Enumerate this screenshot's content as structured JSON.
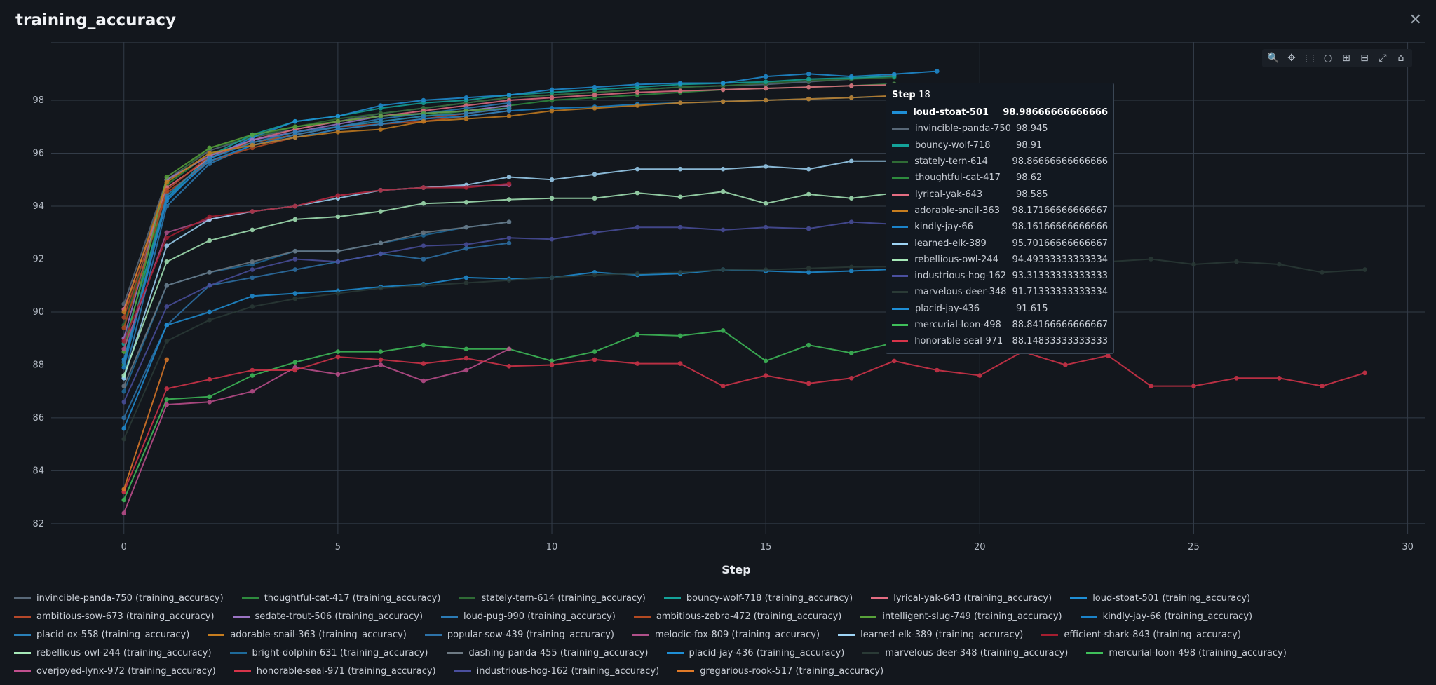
{
  "window": {
    "title": "training_accuracy",
    "close_glyph": "✕"
  },
  "toolbar": [
    {
      "name": "zoom-icon",
      "glyph": "🔍"
    },
    {
      "name": "pan-icon",
      "glyph": "✥"
    },
    {
      "name": "box-select-icon",
      "glyph": "⬚"
    },
    {
      "name": "lasso-select-icon",
      "glyph": "◌"
    },
    {
      "name": "zoom-in-icon",
      "glyph": "⊞"
    },
    {
      "name": "zoom-out-icon",
      "glyph": "⊟"
    },
    {
      "name": "autoscale-icon",
      "glyph": "⤢"
    },
    {
      "name": "reset-axes-icon",
      "glyph": "⌂"
    }
  ],
  "tooltip": {
    "label": "Step",
    "step": "18",
    "rows": [
      {
        "name": "loud-stoat-501",
        "value": "98.98666666666666",
        "color": "#1f8fd6"
      },
      {
        "name": "invincible-panda-750",
        "value": "98.945",
        "color": "#586878"
      },
      {
        "name": "bouncy-wolf-718",
        "value": "98.91",
        "color": "#14a39a"
      },
      {
        "name": "stately-tern-614",
        "value": "98.86666666666666",
        "color": "#2f6b35"
      },
      {
        "name": "thoughtful-cat-417",
        "value": "98.62",
        "color": "#2e8b3e"
      },
      {
        "name": "lyrical-yak-643",
        "value": "98.585",
        "color": "#e46d82"
      },
      {
        "name": "adorable-snail-363",
        "value": "98.17166666666667",
        "color": "#c67d1f"
      },
      {
        "name": "kindly-jay-66",
        "value": "98.16166666666666",
        "color": "#1b83c9"
      },
      {
        "name": "learned-elk-389",
        "value": "95.70166666666667",
        "color": "#9ed4f5"
      },
      {
        "name": "rebellious-owl-244",
        "value": "94.49333333333334",
        "color": "#a6e8b8"
      },
      {
        "name": "industrious-hog-162",
        "value": "93.31333333333333",
        "color": "#4a4f9e"
      },
      {
        "name": "marvelous-deer-348",
        "value": "91.71333333333334",
        "color": "#2a3a36"
      },
      {
        "name": "placid-jay-436",
        "value": "91.615",
        "color": "#1f8fd6"
      },
      {
        "name": "mercurial-loon-498",
        "value": "88.84166666666667",
        "color": "#3fbf5a"
      },
      {
        "name": "honorable-seal-971",
        "value": "88.14833333333333",
        "color": "#d6344a"
      }
    ]
  },
  "chart_data": {
    "type": "line",
    "title": "training_accuracy",
    "xlabel": "Step",
    "ylabel": "",
    "xlim": [
      -1.7,
      30.4
    ],
    "ylim": [
      81.6,
      100.2
    ],
    "xticks": [
      0,
      5,
      10,
      15,
      20,
      25,
      30
    ],
    "yticks": [
      82,
      84,
      86,
      88,
      90,
      92,
      94,
      96,
      98
    ],
    "grid": true,
    "legend_position": "bottom",
    "series": [
      {
        "name": "invincible-panda-750 (training_accuracy)",
        "color": "#586878",
        "values": [
          90.3,
          95.0,
          96.1,
          96.6,
          96.9,
          97.2,
          97.5,
          97.7,
          97.9,
          98.1,
          98.2,
          98.3,
          98.4,
          98.5,
          98.55,
          98.6,
          98.7,
          98.8,
          98.945
        ]
      },
      {
        "name": "thoughtful-cat-417 (training_accuracy)",
        "color": "#2e8b3e",
        "values": [
          88.0,
          94.8,
          96.0,
          96.4,
          96.7,
          97.0,
          97.2,
          97.4,
          97.6,
          97.8,
          98.0,
          98.1,
          98.2,
          98.3,
          98.4,
          98.45,
          98.5,
          98.55,
          98.62
        ]
      },
      {
        "name": "stately-tern-614 (training_accuracy)",
        "color": "#2f6b35",
        "values": [
          89.5,
          94.9,
          96.2,
          96.6,
          97.0,
          97.3,
          97.5,
          97.7,
          97.9,
          98.1,
          98.2,
          98.3,
          98.4,
          98.5,
          98.55,
          98.65,
          98.75,
          98.8,
          98.867
        ]
      },
      {
        "name": "bouncy-wolf-718 (training_accuracy)",
        "color": "#14a39a",
        "values": [
          88.8,
          94.3,
          95.9,
          96.7,
          97.2,
          97.4,
          97.7,
          97.9,
          98.0,
          98.2,
          98.3,
          98.4,
          98.5,
          98.6,
          98.65,
          98.7,
          98.8,
          98.85,
          98.91
        ]
      },
      {
        "name": "lyrical-yak-643 (training_accuracy)",
        "color": "#e46d82",
        "values": [
          90.1,
          94.7,
          95.8,
          96.5,
          96.9,
          97.2,
          97.4,
          97.6,
          97.8,
          98.0,
          98.1,
          98.2,
          98.3,
          98.35,
          98.4,
          98.45,
          98.5,
          98.55,
          98.585
        ]
      },
      {
        "name": "loud-stoat-501 (training_accuracy)",
        "color": "#1f8fd6",
        "values": [
          88.2,
          94.2,
          95.8,
          96.6,
          97.2,
          97.4,
          97.8,
          98.0,
          98.1,
          98.2,
          98.4,
          98.5,
          98.6,
          98.65,
          98.65,
          98.9,
          99.0,
          98.9,
          98.987,
          99.1
        ]
      },
      {
        "name": "ambitious-sow-673 (training_accuracy)",
        "color": "#b5482a",
        "values": [
          89.8,
          94.6,
          95.9,
          96.4,
          96.7,
          97.0,
          97.1,
          97.3,
          97.5,
          97.7
        ]
      },
      {
        "name": "sedate-trout-506 (training_accuracy)",
        "color": "#9b74c4",
        "values": [
          89.0,
          95.0,
          95.9,
          96.5,
          96.8,
          97.1,
          97.4,
          97.5,
          97.6,
          97.8
        ]
      },
      {
        "name": "loud-pug-990 (training_accuracy)",
        "color": "#2b7bb5",
        "values": [
          87.5,
          94.0,
          95.6,
          96.3,
          96.7,
          97.0,
          97.3,
          97.5,
          97.7,
          97.9
        ]
      },
      {
        "name": "ambitious-zebra-472 (training_accuracy)",
        "color": "#b34a22",
        "values": [
          89.4,
          94.5,
          95.7,
          96.2,
          96.6,
          96.9,
          97.1,
          97.2,
          97.4,
          97.6
        ]
      },
      {
        "name": "intelligent-slug-749 (training_accuracy)",
        "color": "#58a23a",
        "values": [
          88.5,
          95.1,
          96.2,
          96.7,
          97.0,
          97.2,
          97.4,
          97.5,
          97.6,
          97.7
        ]
      },
      {
        "name": "kindly-jay-66 (training_accuracy)",
        "color": "#1b83c9",
        "values": [
          87.9,
          94.3,
          95.7,
          96.3,
          96.6,
          96.9,
          97.1,
          97.3,
          97.4,
          97.6,
          97.7,
          97.75,
          97.85,
          97.9,
          97.95,
          98.0,
          98.05,
          98.1,
          98.162
        ]
      },
      {
        "name": "placid-ox-558 (training_accuracy)",
        "color": "#2a80b8",
        "values": [
          88.1,
          94.4,
          95.8,
          96.4,
          96.8,
          97.0,
          97.2,
          97.4,
          97.5,
          97.7
        ]
      },
      {
        "name": "adorable-snail-363 (training_accuracy)",
        "color": "#c67d1f",
        "values": [
          90.0,
          94.9,
          96.0,
          96.3,
          96.6,
          96.8,
          96.9,
          97.2,
          97.3,
          97.4,
          97.6,
          97.7,
          97.8,
          97.9,
          97.95,
          98.0,
          98.05,
          98.1,
          98.172
        ]
      },
      {
        "name": "popular-sow-439 (training_accuracy)",
        "color": "#2d72a8",
        "values": [
          86.0,
          89.5,
          91.0,
          91.3,
          91.6,
          91.9,
          92.2,
          92.0,
          92.4,
          92.6
        ]
      },
      {
        "name": "melodic-fox-809 (training_accuracy)",
        "color": "#b0508a",
        "values": [
          88.6,
          93.0,
          93.5,
          93.8,
          94.0,
          94.4,
          94.6,
          94.7,
          94.75,
          94.8
        ]
      },
      {
        "name": "learned-elk-389 (training_accuracy)",
        "color": "#9ed4f5",
        "values": [
          87.5,
          92.5,
          93.5,
          93.8,
          94.0,
          94.3,
          94.6,
          94.7,
          94.8,
          95.1,
          95.0,
          95.2,
          95.4,
          95.4,
          95.4,
          95.5,
          95.4,
          95.7,
          95.702
        ]
      },
      {
        "name": "efficient-shark-843 (training_accuracy)",
        "color": "#a51e30",
        "values": [
          88.9,
          92.8,
          93.6,
          93.8,
          94.0,
          94.4,
          94.6,
          94.7,
          94.7,
          94.85
        ]
      },
      {
        "name": "rebellious-owl-244 (training_accuracy)",
        "color": "#a6e8b8",
        "values": [
          87.6,
          91.9,
          92.7,
          93.1,
          93.5,
          93.6,
          93.8,
          94.1,
          94.15,
          94.25,
          94.3,
          94.3,
          94.5,
          94.35,
          94.55,
          94.1,
          94.45,
          94.3,
          94.493
        ]
      },
      {
        "name": "bright-dolphin-631 (training_accuracy)",
        "color": "#1e6a9a",
        "values": [
          87.0,
          91.0,
          91.5,
          91.8,
          92.3,
          92.3,
          92.6,
          92.9,
          93.2,
          93.4
        ]
      },
      {
        "name": "dashing-panda-455 (training_accuracy)",
        "color": "#6e7a84",
        "values": [
          87.2,
          91.0,
          91.5,
          91.9,
          92.3,
          92.3,
          92.6,
          93.0,
          93.2,
          93.4
        ]
      },
      {
        "name": "placid-jay-436 (training_accuracy)",
        "color": "#1f8fd6",
        "values": [
          85.6,
          89.5,
          90.0,
          90.6,
          90.7,
          90.8,
          90.95,
          91.05,
          91.3,
          91.25,
          91.3,
          91.5,
          91.4,
          91.45,
          91.6,
          91.55,
          91.5,
          91.55,
          91.615
        ]
      },
      {
        "name": "marvelous-deer-348 (training_accuracy)",
        "color": "#2a3a36",
        "values": [
          85.2,
          88.9,
          89.7,
          90.2,
          90.5,
          90.7,
          90.9,
          91.0,
          91.1,
          91.2,
          91.3,
          91.4,
          91.45,
          91.5,
          91.6,
          91.6,
          91.65,
          91.7,
          91.713,
          91.8,
          91.9,
          91.95,
          92.0,
          91.9,
          92.0,
          91.8,
          91.9,
          91.8,
          91.5,
          91.6
        ]
      },
      {
        "name": "mercurial-loon-498 (training_accuracy)",
        "color": "#3fbf5a",
        "values": [
          82.9,
          86.7,
          86.8,
          87.6,
          88.1,
          88.5,
          88.5,
          88.75,
          88.6,
          88.6,
          88.15,
          88.5,
          89.15,
          89.1,
          89.3,
          88.15,
          88.75,
          88.45,
          88.842
        ]
      },
      {
        "name": "overjoyed-lynx-972 (training_accuracy)",
        "color": "#c04f8e",
        "values": [
          82.4,
          86.5,
          86.6,
          87.0,
          87.9,
          87.65,
          88.0,
          87.4,
          87.8,
          88.6
        ]
      },
      {
        "name": "honorable-seal-971 (training_accuracy)",
        "color": "#d6344a",
        "values": [
          83.2,
          87.1,
          87.45,
          87.8,
          87.8,
          88.3,
          88.2,
          88.05,
          88.25,
          87.95,
          88.0,
          88.2,
          88.05,
          88.05,
          87.2,
          87.6,
          87.3,
          87.5,
          88.148,
          87.8,
          87.6,
          88.5,
          88.0,
          88.35,
          87.2,
          87.2,
          87.5,
          87.5,
          87.2,
          87.7
        ]
      },
      {
        "name": "industrious-hog-162 (training_accuracy)",
        "color": "#4a4f9e",
        "values": [
          86.6,
          90.2,
          91.0,
          91.6,
          92.0,
          91.9,
          92.2,
          92.5,
          92.55,
          92.8,
          92.75,
          93.0,
          93.2,
          93.2,
          93.1,
          93.2,
          93.15,
          93.4,
          93.313
        ]
      },
      {
        "name": "gregarious-rook-517 (training_accuracy)",
        "color": "#e07a28",
        "values": [
          83.3,
          88.2
        ]
      }
    ]
  }
}
